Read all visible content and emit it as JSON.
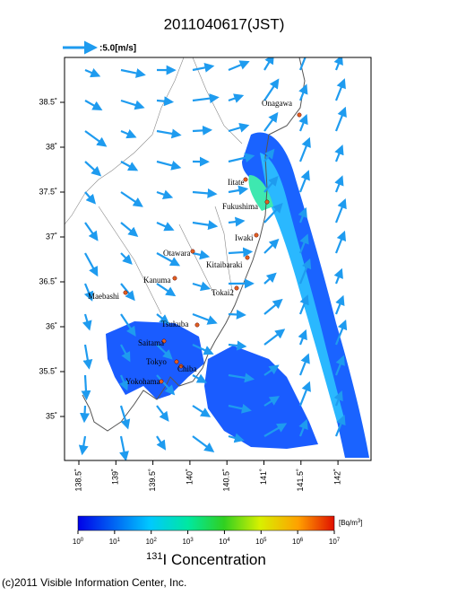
{
  "title": "2011040617(JST)",
  "wind_legend": ":5.0[m/s]",
  "map": {
    "lat_ticks": [
      {
        "value": 38.5,
        "label": "38.5˚"
      },
      {
        "value": 38,
        "label": "38˚"
      },
      {
        "value": 37.5,
        "label": "37.5˚"
      },
      {
        "value": 37,
        "label": "37˚"
      },
      {
        "value": 36.5,
        "label": "36.5˚"
      },
      {
        "value": 36,
        "label": "36˚"
      },
      {
        "value": 35.5,
        "label": "35.5˚"
      },
      {
        "value": 35,
        "label": "35˚"
      }
    ],
    "lon_ticks": [
      {
        "value": 138.5,
        "label": "138.5˚"
      },
      {
        "value": 139,
        "label": "139˚"
      },
      {
        "value": 139.5,
        "label": "139.5˚"
      },
      {
        "value": 140,
        "label": "140˚"
      },
      {
        "value": 140.5,
        "label": "140.5˚"
      },
      {
        "value": 141,
        "label": "141˚"
      },
      {
        "value": 141.5,
        "label": "141.5˚"
      },
      {
        "value": 142,
        "label": "142˚"
      }
    ],
    "places": [
      "Onagawa",
      "Iitate",
      "Fukushima",
      "Iwaki",
      "Otawara",
      "Kitaibaraki",
      "Kanuma",
      "Tokai2",
      "Maebashi",
      "Tsukuba",
      "Saitama",
      "Tokyo",
      "Chiba",
      "Yokohama"
    ]
  },
  "colorbar": {
    "ticks": [
      {
        "value": 0,
        "label": "10",
        "exp": "0"
      },
      {
        "value": 1,
        "label": "10",
        "exp": "1"
      },
      {
        "value": 2,
        "label": "10",
        "exp": "2"
      },
      {
        "value": 3,
        "label": "10",
        "exp": "3"
      },
      {
        "value": 4,
        "label": "10",
        "exp": "4"
      },
      {
        "value": 5,
        "label": "10",
        "exp": "5"
      },
      {
        "value": 6,
        "label": "10",
        "exp": "6"
      },
      {
        "value": 7,
        "label": "10",
        "exp": "7"
      }
    ],
    "unit": {
      "text": "[Bq/m",
      "sup": "3",
      "close": "]"
    }
  },
  "concentration_title": {
    "isotope": "131",
    "text": "I Concentration"
  },
  "copyright": "(c)2011 Visible Information Center, Inc."
}
